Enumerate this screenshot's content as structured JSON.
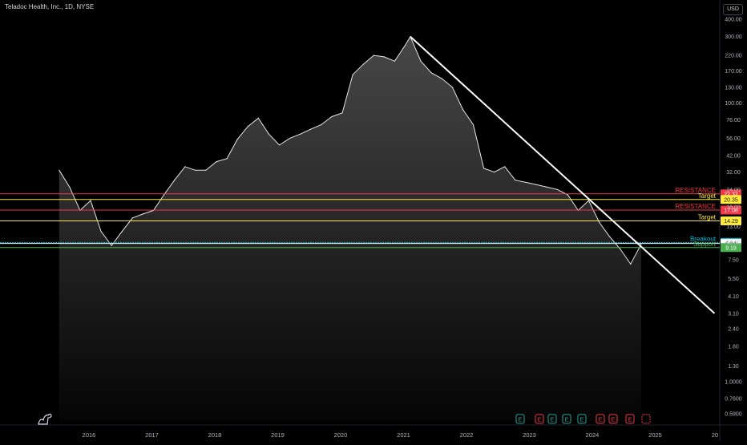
{
  "header": {
    "title": "Teladoc Health, Inc., 1D, NYSE"
  },
  "currency": "USD",
  "chart_data": {
    "type": "line",
    "title": "Teladoc Health, Inc., 1D, NYSE",
    "y_scale": "log",
    "ylim": [
      0.55,
      420
    ],
    "y_ticks": [
      "400.00",
      "300.00",
      "220.00",
      "170.00",
      "130.00",
      "100.00",
      "76.00",
      "56.00",
      "42.00",
      "32.00",
      "24.00",
      "18.00",
      "13.00",
      "10.00",
      "7.50",
      "5.50",
      "4.10",
      "3.10",
      "2.40",
      "1.80",
      "1.30",
      "1.0000",
      "0.7600",
      "0.5900"
    ],
    "x_ticks": [
      "2016",
      "2017",
      "2018",
      "2019",
      "2020",
      "2021",
      "2022",
      "2023",
      "2024",
      "2025",
      "20"
    ],
    "series": [
      {
        "x": [
          "2015-07",
          "2015-09",
          "2015-11",
          "2016-01",
          "2016-03",
          "2016-05",
          "2016-07",
          "2016-09",
          "2016-11",
          "2017-01",
          "2017-03",
          "2017-05",
          "2017-07",
          "2017-09",
          "2017-11",
          "2018-01",
          "2018-03",
          "2018-05",
          "2018-07",
          "2018-09",
          "2018-11",
          "2019-01",
          "2019-03",
          "2019-05",
          "2019-07",
          "2019-09",
          "2019-11",
          "2020-01",
          "2020-03",
          "2020-05",
          "2020-07",
          "2020-09",
          "2020-11",
          "2021-01",
          "2021-02",
          "2021-04",
          "2021-06",
          "2021-08",
          "2021-10",
          "2021-12",
          "2022-02",
          "2022-04",
          "2022-06",
          "2022-08",
          "2022-10",
          "2022-12",
          "2023-02",
          "2023-04",
          "2023-06",
          "2023-08",
          "2023-10",
          "2023-12",
          "2024-02",
          "2024-04",
          "2024-06",
          "2024-08",
          "2024-10"
        ],
        "y": [
          33,
          25,
          17,
          20,
          12,
          9.5,
          12,
          15,
          16,
          17,
          22,
          28,
          35,
          33,
          33,
          38,
          40,
          55,
          68,
          78,
          60,
          50,
          56,
          60,
          65,
          70,
          80,
          85,
          160,
          190,
          220,
          215,
          200,
          260,
          300,
          200,
          165,
          150,
          130,
          90,
          70,
          34,
          32,
          35,
          28,
          27,
          26,
          25,
          24,
          22,
          17,
          20,
          14,
          11,
          9,
          7,
          9.7
        ]
      }
    ],
    "horizontal_levels": [
      {
        "label": "RESISTANCE",
        "value": 22.32,
        "tag": "22.32",
        "color": "#f23645"
      },
      {
        "label": "Target",
        "value": 20.35,
        "tag": "20.35",
        "color": "#ffeb3b"
      },
      {
        "label": "RESISTANCE",
        "value": 17.08,
        "tag": "17.08",
        "color": "#f23645"
      },
      {
        "label": "Target",
        "value": 14.29,
        "tag": "14.29",
        "color": "#ffeb3b"
      },
      {
        "label": "Breakout",
        "value": 10.0,
        "tag": "10.00",
        "color": "#00bcd4"
      },
      {
        "label": "",
        "value": 9.84,
        "tag": "9.84",
        "color": "#ffffff"
      },
      {
        "label": "Support",
        "value": 9.19,
        "tag": "9.19",
        "color": "#4caf50"
      }
    ],
    "trendline": {
      "from": {
        "x": "2021-02",
        "y": 300
      },
      "to": {
        "x": "2025-12",
        "y": 3.1
      },
      "color": "#ffffff"
    },
    "earnings_markers": [
      {
        "label": "E",
        "color": "#26a69a"
      },
      {
        "label": "E",
        "color": "#f23645"
      },
      {
        "label": "E",
        "color": "#26a69a"
      },
      {
        "label": "E",
        "color": "#26a69a"
      },
      {
        "label": "E",
        "color": "#26a69a"
      },
      {
        "label": "E",
        "color": "#f23645"
      },
      {
        "label": "E",
        "color": "#f23645"
      },
      {
        "label": "E",
        "color": "#f23645"
      }
    ],
    "grid": false
  }
}
